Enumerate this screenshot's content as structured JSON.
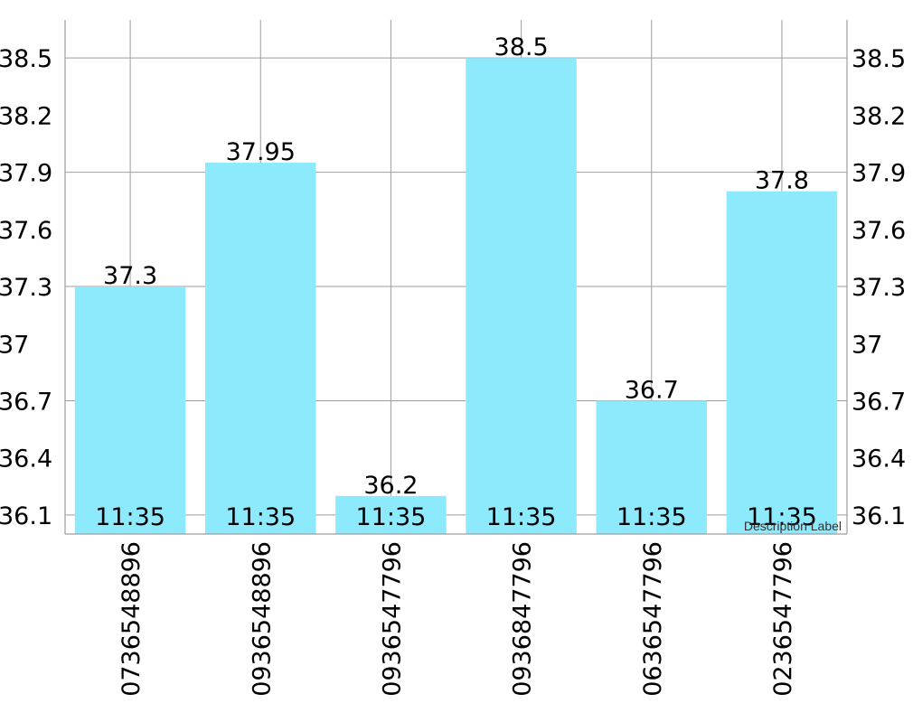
{
  "chart_data": {
    "type": "bar",
    "categories": [
      "0736548896",
      "0936548896",
      "0936547796",
      "0936847796",
      "0636547796",
      "0236547796"
    ],
    "values": [
      37.3,
      37.95,
      36.2,
      38.5,
      36.7,
      37.8
    ],
    "value_labels": [
      "37.3",
      "37.95",
      "36.2",
      "38.5",
      "36.7",
      "37.8"
    ],
    "bar_inner_labels": [
      "11:35",
      "11:35",
      "11:35",
      "11:35",
      "11:35",
      "11:35"
    ],
    "yticks": [
      "36.1",
      "36.4",
      "36.7",
      "37",
      "37.3",
      "37.6",
      "37.9",
      "38.2",
      "38.5"
    ],
    "ylim": [
      36.0,
      38.7
    ],
    "axes": "left-and-right",
    "grid": true,
    "bar_color": "#8de9fc",
    "grid_color": "#9e9e9e",
    "description": "Description Label"
  }
}
